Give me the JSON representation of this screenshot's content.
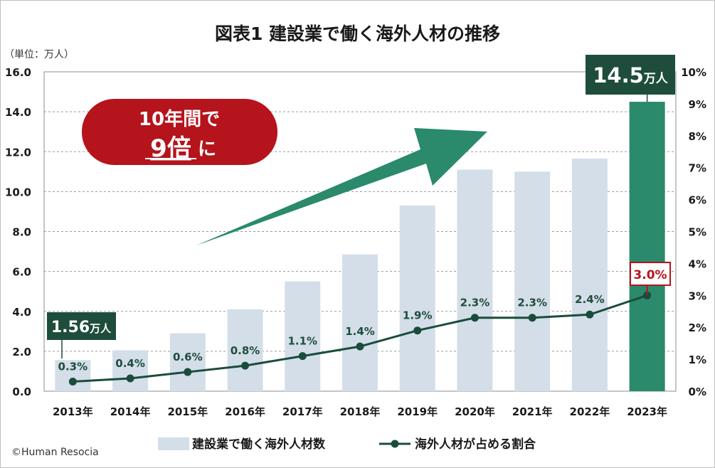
{
  "title": "図表1 建設業で働く海外人材の推移",
  "unit": "（単位：万人）",
  "credit": "©Human Resocia",
  "colors": {
    "bar": "#d3dee8",
    "bar_highlight": "#2a8a6b",
    "line": "#1a4c3b",
    "label": "#1e4d3c",
    "callout_bg": "#1e4d3c",
    "accent_red": "#b5141c",
    "arrow": "#2a8a6b",
    "grid": "#9a9a9a"
  },
  "callouts": {
    "first": {
      "value": "1.56",
      "unit": "万人"
    },
    "last": {
      "value": "14.5",
      "unit": "万人"
    },
    "last_rate": "3.0%"
  },
  "badge": {
    "line1": "10年間で",
    "line2_big": "9倍",
    "line2_suffix": "に"
  },
  "chart_data": {
    "type": "bar",
    "categories": [
      "2013年",
      "2014年",
      "2015年",
      "2016年",
      "2017年",
      "2018年",
      "2019年",
      "2020年",
      "2021年",
      "2022年",
      "2023年"
    ],
    "series": [
      {
        "name": "建設業で働く海外人材数",
        "type": "bar",
        "axis": "left",
        "values": [
          1.56,
          2.05,
          2.9,
          4.1,
          5.5,
          6.85,
          9.3,
          11.1,
          11.0,
          11.65,
          14.5
        ],
        "highlight_index": 10
      },
      {
        "name": "海外人材が占める割合",
        "type": "line",
        "axis": "right",
        "values": [
          0.3,
          0.4,
          0.6,
          0.8,
          1.1,
          1.4,
          1.9,
          2.3,
          2.3,
          2.4,
          3.0
        ],
        "labels": [
          "0.3%",
          "0.4%",
          "0.6%",
          "0.8%",
          "1.1%",
          "1.4%",
          "1.9%",
          "2.3%",
          "2.3%",
          "2.4%",
          "3.0%"
        ]
      }
    ],
    "y_left": {
      "min": 0,
      "max": 16,
      "ticks": [
        "0.0",
        "2.0",
        "4.0",
        "6.0",
        "8.0",
        "10.0",
        "12.0",
        "14.0",
        "16.0"
      ]
    },
    "y_right": {
      "min": 0,
      "max": 10,
      "ticks": [
        "0%",
        "1%",
        "2%",
        "3%",
        "4%",
        "5%",
        "6%",
        "7%",
        "8%",
        "9%",
        "10%"
      ]
    },
    "grid": true,
    "legend": {
      "position": "bottom",
      "items": [
        "建設業で働く海外人材数",
        "海外人材が占める割合"
      ]
    }
  }
}
